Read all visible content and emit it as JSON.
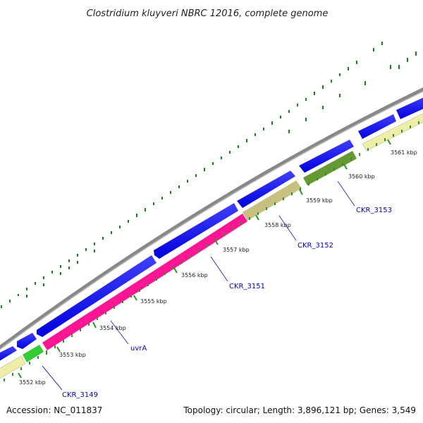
{
  "title": "Clostridium kluyveri NBRC 12016, complete genome",
  "footer": {
    "accession": "Accession: NC_011837",
    "summary": "Topology: circular; Length: 3,896,121 bp; Genes: 3,549"
  },
  "tick_labels": [
    "3552 kbp",
    "3553 kbp",
    "3554 kbp",
    "3555 kbp",
    "3556 kbp",
    "3557 kbp",
    "3558 kbp",
    "3559 kbp",
    "3560 kbp",
    "3561 kbp"
  ],
  "gene_labels": [
    "CKR_3149",
    "uvrA",
    "CKR_3151",
    "CKR_3152",
    "CKR_3153"
  ],
  "colors": {
    "backbone": "#888888",
    "forward_gene": "#0000ee",
    "cds_yellow": "#eeeeaa",
    "cds_green": "#33cc33",
    "cds_pink": "#ff1493",
    "cds_khaki": "#c8c080",
    "cds_olive": "#669933",
    "gc_dots": "#118811",
    "tick": "#229922",
    "label_blue": "#0000cc"
  }
}
